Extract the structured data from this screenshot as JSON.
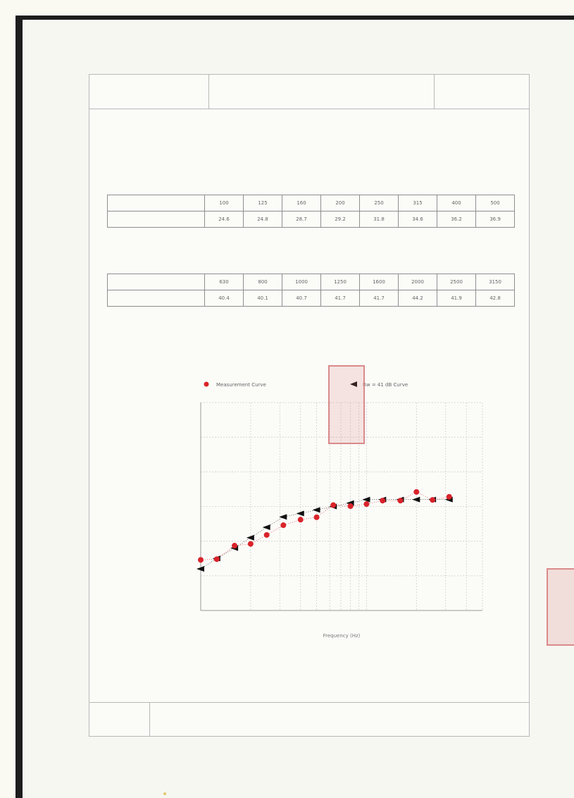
{
  "header": {
    "left": "",
    "center": "",
    "right": ""
  },
  "lines": {
    "section1": "",
    "item1": "",
    "item2": "",
    "item3": "",
    "item4": ""
  },
  "table1": {
    "row_header": [
      "",
      ""
    ],
    "frequencies": [
      "100",
      "125",
      "160",
      "200",
      "250",
      "315",
      "400",
      "500"
    ],
    "values": [
      "24.6",
      "24.8",
      "28.7",
      "29.2",
      "31.8",
      "34.6",
      "36.2",
      "36.9"
    ]
  },
  "table2": {
    "row_header": [
      "",
      ""
    ],
    "frequencies": [
      "630",
      "800",
      "1000",
      "1250",
      "1600",
      "2000",
      "2500",
      "3150"
    ],
    "values": [
      "40.4",
      "40.1",
      "40.7",
      "41.7",
      "41.7",
      "44.2",
      "41.9",
      "42.8"
    ]
  },
  "footer": {
    "label": ""
  },
  "colors": {
    "measurement": "#d9232a",
    "reference": "#111111",
    "grid": "#cfcfcf",
    "stamp": "#d98a8a"
  },
  "chart_data": {
    "type": "line",
    "title": "",
    "xlabel": "Frequency (Hz)",
    "ylabel": "",
    "x": [
      100,
      125,
      160,
      200,
      250,
      315,
      400,
      500,
      630,
      800,
      1000,
      1250,
      1600,
      2000,
      2500,
      3150
    ],
    "xscale": "log",
    "xlim": [
      100,
      5000
    ],
    "ylim": [
      10,
      70
    ],
    "legend_position": "top",
    "series": [
      {
        "name": "Measurement Curve",
        "marker": "circle",
        "values": [
          24.6,
          24.8,
          28.7,
          29.2,
          31.8,
          34.6,
          36.2,
          36.9,
          40.4,
          40.1,
          40.7,
          41.7,
          41.7,
          44.2,
          41.9,
          42.8
        ]
      },
      {
        "name": "Rw = 41 dB Curve",
        "marker": "arrow",
        "values": [
          22,
          25,
          28,
          31,
          34,
          37,
          38,
          39,
          40,
          41,
          42,
          42,
          42,
          42,
          42,
          42
        ]
      }
    ]
  }
}
